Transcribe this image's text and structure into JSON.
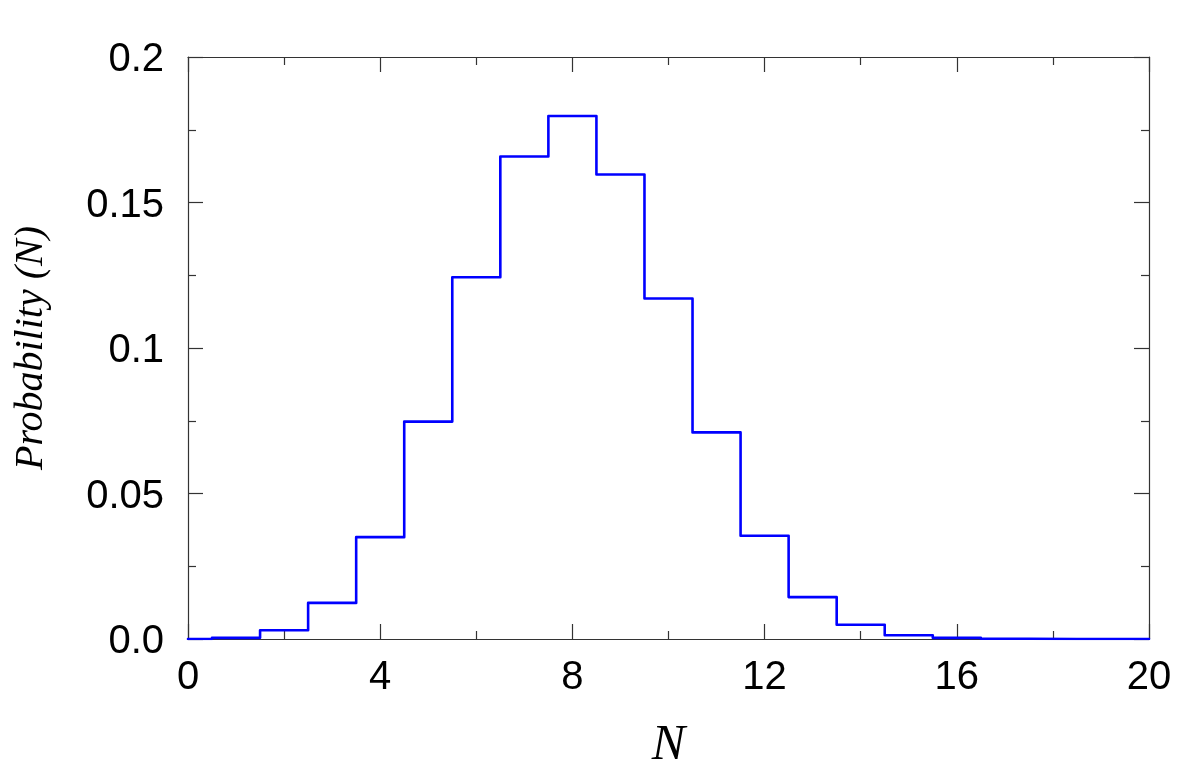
{
  "chart_data": {
    "type": "histogram",
    "xlabel": "N",
    "ylabel": "Probability (N)",
    "bins": [
      0,
      0.5,
      1.5,
      2.5,
      3.5,
      4.5,
      5.5,
      6.5,
      7.5,
      8.5,
      9.5,
      10.5,
      11.5,
      12.5,
      13.5,
      14.5,
      15.5,
      16.5,
      17.5,
      18.5,
      19.5,
      20
    ],
    "values": [
      0,
      0.0004,
      0.003,
      0.0124,
      0.035,
      0.0747,
      0.1243,
      0.1658,
      0.1797,
      0.1596,
      0.117,
      0.071,
      0.0355,
      0.0144,
      0.0049,
      0.0013,
      0.0004,
      0.0001,
      0,
      0,
      0
    ],
    "color": "#0000ff",
    "xlim": [
      0,
      20
    ],
    "xticks": [
      0,
      4,
      8,
      12,
      16,
      20
    ],
    "ylim": [
      0,
      0.2
    ],
    "yticks": [
      {
        "value": 0,
        "label": "0.0"
      },
      0.05,
      0.1,
      0.15,
      0.2
    ]
  }
}
